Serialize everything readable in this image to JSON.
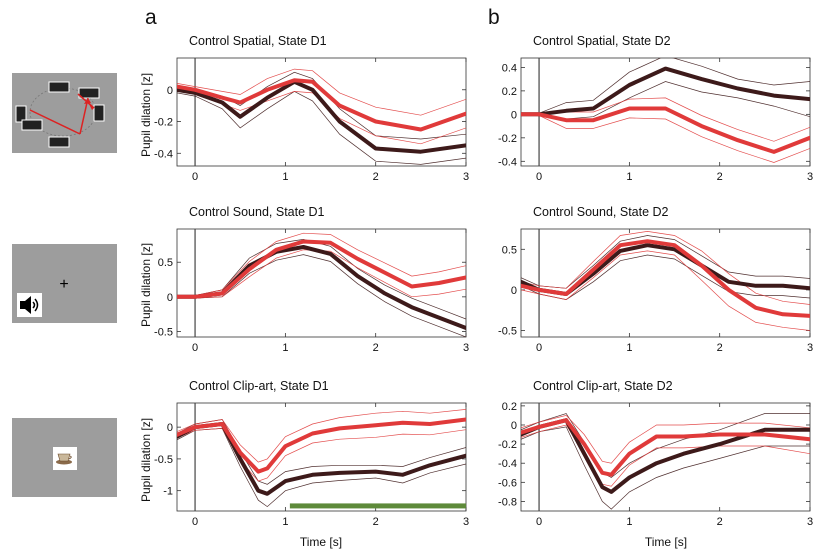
{
  "figure": {
    "letters": [
      "a",
      "b"
    ],
    "ylabel": "Pupil dilation [z]",
    "xlabel": "Time [s]"
  },
  "stimuli": [
    {
      "name": "spatial",
      "icons": [
        "checkerboard-icon"
      ]
    },
    {
      "name": "sound",
      "text": "+",
      "icons": [
        "speaker-icon"
      ]
    },
    {
      "name": "clip-art",
      "icons": [
        "coffee-cup-icon"
      ]
    }
  ],
  "colors": {
    "dark": "#3d1a1a",
    "red": "#e03a3a",
    "bar": "#5e8a3a",
    "axis": "#333333"
  },
  "chart_data": [
    {
      "type": "line",
      "title": "Control Spatial, State D1",
      "xlabel": "",
      "ylabel": "Pupil dilation [z]",
      "xlim": [
        -0.2,
        3
      ],
      "ylim": [
        -0.48,
        0.2
      ],
      "xticks": [
        0,
        1,
        2,
        3
      ],
      "yticks": [
        0,
        -0.2,
        -0.4
      ],
      "ytick_labels": [
        "0",
        "-0.2",
        "-0.4"
      ],
      "x": [
        -0.2,
        0,
        0.3,
        0.5,
        0.8,
        1.1,
        1.3,
        1.6,
        2.0,
        2.5,
        3.0
      ],
      "series": [
        {
          "name": "dark",
          "values": [
            0.0,
            -0.02,
            -0.08,
            -0.17,
            -0.05,
            0.05,
            0.0,
            -0.2,
            -0.37,
            -0.39,
            -0.35
          ]
        },
        {
          "name": "red",
          "values": [
            0.02,
            0.0,
            -0.05,
            -0.08,
            0.0,
            0.06,
            0.05,
            -0.1,
            -0.2,
            -0.25,
            -0.15
          ]
        }
      ],
      "bands": [
        {
          "series": "dark",
          "upper": [
            0.02,
            0.0,
            -0.04,
            -0.1,
            0.02,
            0.11,
            0.07,
            -0.12,
            -0.29,
            -0.31,
            -0.28
          ],
          "lower": [
            -0.02,
            -0.04,
            -0.12,
            -0.24,
            -0.12,
            -0.01,
            -0.07,
            -0.28,
            -0.45,
            -0.47,
            -0.43
          ]
        },
        {
          "series": "red",
          "upper": [
            0.04,
            0.02,
            -0.01,
            -0.03,
            0.07,
            0.13,
            0.12,
            -0.02,
            -0.11,
            -0.16,
            -0.06
          ],
          "lower": [
            0.0,
            -0.02,
            -0.09,
            -0.13,
            -0.07,
            -0.01,
            -0.02,
            -0.18,
            -0.29,
            -0.34,
            -0.24
          ]
        }
      ]
    },
    {
      "type": "line",
      "title": "Control Spatial, State D2",
      "xlabel": "",
      "ylabel": "",
      "xlim": [
        -0.2,
        3
      ],
      "ylim": [
        -0.44,
        0.48
      ],
      "xticks": [
        0,
        1,
        2,
        3
      ],
      "yticks": [
        0.4,
        0.2,
        0,
        -0.2,
        -0.4
      ],
      "ytick_labels": [
        "0.4",
        "0.2",
        "0",
        "-0.2",
        "-0.4"
      ],
      "x": [
        -0.2,
        0,
        0.3,
        0.6,
        1.0,
        1.4,
        1.8,
        2.2,
        2.6,
        3.0
      ],
      "series": [
        {
          "name": "dark",
          "values": [
            0.0,
            0.0,
            0.03,
            0.05,
            0.25,
            0.39,
            0.3,
            0.22,
            0.16,
            0.13
          ]
        },
        {
          "name": "red",
          "values": [
            0.0,
            0.0,
            -0.05,
            -0.05,
            0.05,
            0.05,
            -0.1,
            -0.22,
            -0.32,
            -0.2
          ]
        }
      ],
      "bands": [
        {
          "series": "dark",
          "upper": [
            0.01,
            0.01,
            0.1,
            0.12,
            0.36,
            0.5,
            0.41,
            0.3,
            0.25,
            0.28
          ],
          "lower": [
            -0.01,
            -0.01,
            -0.04,
            -0.02,
            0.14,
            0.28,
            0.19,
            0.14,
            0.07,
            -0.02
          ]
        },
        {
          "series": "red",
          "upper": [
            0.01,
            0.01,
            0.02,
            0.02,
            0.13,
            0.14,
            -0.01,
            -0.13,
            -0.23,
            -0.11
          ],
          "lower": [
            -0.01,
            -0.01,
            -0.12,
            -0.12,
            -0.03,
            -0.04,
            -0.19,
            -0.31,
            -0.41,
            -0.29
          ]
        }
      ]
    },
    {
      "type": "line",
      "title": "Control Sound, State D1",
      "xlabel": "",
      "ylabel": "Pupil dilation [z]",
      "xlim": [
        -0.2,
        3
      ],
      "ylim": [
        -0.58,
        0.98
      ],
      "xticks": [
        0,
        1,
        2,
        3
      ],
      "yticks": [
        0.5,
        0,
        -0.5
      ],
      "ytick_labels": [
        "0.5",
        "0",
        "-0.5"
      ],
      "x": [
        -0.2,
        0,
        0.3,
        0.6,
        0.9,
        1.2,
        1.5,
        1.8,
        2.1,
        2.4,
        2.7,
        3.0
      ],
      "series": [
        {
          "name": "dark",
          "values": [
            0.0,
            0.0,
            0.05,
            0.45,
            0.65,
            0.72,
            0.62,
            0.3,
            0.05,
            -0.15,
            -0.3,
            -0.45
          ]
        },
        {
          "name": "red",
          "values": [
            0.0,
            0.0,
            0.05,
            0.4,
            0.68,
            0.8,
            0.78,
            0.55,
            0.35,
            0.15,
            0.2,
            0.28
          ]
        }
      ],
      "bands": [
        {
          "series": "dark",
          "upper": [
            0.02,
            0.02,
            0.1,
            0.56,
            0.77,
            0.83,
            0.73,
            0.41,
            0.17,
            -0.02,
            -0.17,
            -0.32
          ],
          "lower": [
            -0.02,
            -0.02,
            0.0,
            0.34,
            0.53,
            0.61,
            0.51,
            0.19,
            -0.07,
            -0.28,
            -0.43,
            -0.58
          ]
        },
        {
          "series": "red",
          "upper": [
            0.02,
            0.02,
            0.1,
            0.51,
            0.8,
            0.92,
            0.9,
            0.68,
            0.49,
            0.3,
            0.36,
            0.45
          ],
          "lower": [
            -0.02,
            -0.02,
            0.0,
            0.29,
            0.56,
            0.68,
            0.66,
            0.42,
            0.21,
            0.0,
            0.04,
            0.11
          ]
        }
      ]
    },
    {
      "type": "line",
      "title": "Control Sound, State D2",
      "xlabel": "",
      "ylabel": "",
      "xlim": [
        -0.2,
        3
      ],
      "ylim": [
        -0.58,
        0.75
      ],
      "xticks": [
        0,
        1,
        2,
        3
      ],
      "yticks": [
        0.5,
        0,
        -0.5
      ],
      "ytick_labels": [
        "0.5",
        "0",
        "-0.5"
      ],
      "x": [
        -0.2,
        0,
        0.3,
        0.6,
        0.9,
        1.2,
        1.5,
        1.8,
        2.1,
        2.4,
        2.7,
        3.0
      ],
      "series": [
        {
          "name": "dark",
          "values": [
            0.1,
            0.0,
            -0.05,
            0.2,
            0.48,
            0.55,
            0.5,
            0.3,
            0.1,
            0.05,
            0.05,
            0.02
          ]
        },
        {
          "name": "red",
          "values": [
            0.05,
            0.0,
            -0.05,
            0.25,
            0.55,
            0.6,
            0.55,
            0.3,
            0.0,
            -0.22,
            -0.3,
            -0.32
          ]
        }
      ],
      "bands": [
        {
          "series": "dark",
          "upper": [
            0.15,
            0.05,
            0.02,
            0.3,
            0.6,
            0.67,
            0.62,
            0.42,
            0.22,
            0.17,
            0.17,
            0.14
          ],
          "lower": [
            0.05,
            -0.05,
            -0.12,
            0.1,
            0.36,
            0.43,
            0.38,
            0.18,
            -0.02,
            -0.07,
            -0.07,
            -0.1
          ]
        },
        {
          "series": "red",
          "upper": [
            0.1,
            0.05,
            0.02,
            0.35,
            0.67,
            0.72,
            0.67,
            0.48,
            0.2,
            -0.04,
            -0.14,
            -0.18
          ],
          "lower": [
            0.0,
            -0.05,
            -0.12,
            0.15,
            0.43,
            0.48,
            0.43,
            0.12,
            -0.2,
            -0.4,
            -0.46,
            -0.5
          ]
        }
      ]
    },
    {
      "type": "line",
      "title": "Control Clip-art, State D1",
      "xlabel": "Time [s]",
      "ylabel": "Pupil dilation [z]",
      "xlim": [
        -0.2,
        3
      ],
      "ylim": [
        -1.32,
        0.38
      ],
      "xticks": [
        0,
        1,
        2,
        3
      ],
      "yticks": [
        0,
        -0.5,
        -1
      ],
      "ytick_labels": [
        "0",
        "-0.5",
        "-1"
      ],
      "x": [
        -0.2,
        0,
        0.3,
        0.5,
        0.7,
        0.8,
        1.0,
        1.3,
        1.6,
        2.0,
        2.3,
        2.6,
        3.0
      ],
      "series": [
        {
          "name": "dark",
          "values": [
            -0.15,
            0.0,
            0.05,
            -0.5,
            -1.0,
            -1.05,
            -0.85,
            -0.75,
            -0.72,
            -0.7,
            -0.75,
            -0.6,
            -0.45
          ]
        },
        {
          "name": "red",
          "values": [
            -0.12,
            0.0,
            0.05,
            -0.4,
            -0.7,
            -0.65,
            -0.3,
            -0.1,
            -0.02,
            0.03,
            0.07,
            0.05,
            0.12
          ]
        }
      ],
      "bands": [
        {
          "series": "dark",
          "upper": [
            -0.1,
            0.05,
            0.12,
            -0.38,
            -0.85,
            -0.9,
            -0.7,
            -0.62,
            -0.6,
            -0.6,
            -0.62,
            -0.48,
            -0.32
          ],
          "lower": [
            -0.2,
            -0.05,
            -0.02,
            -0.62,
            -1.15,
            -1.25,
            -1.0,
            -0.88,
            -0.84,
            -0.8,
            -0.88,
            -0.72,
            -0.58
          ]
        },
        {
          "series": "red",
          "upper": [
            -0.07,
            0.05,
            0.12,
            -0.28,
            -0.55,
            -0.5,
            -0.15,
            0.05,
            0.15,
            0.22,
            0.25,
            0.22,
            0.28
          ],
          "lower": [
            -0.17,
            -0.05,
            -0.02,
            -0.52,
            -0.85,
            -0.8,
            -0.45,
            -0.25,
            -0.19,
            -0.16,
            -0.11,
            -0.12,
            -0.04
          ]
        }
      ],
      "significance_bar": {
        "x_start": 1.05,
        "x_end": 3.0,
        "y": -1.24
      }
    },
    {
      "type": "line",
      "title": "Control Clip-art, State D2",
      "xlabel": "Time [s]",
      "ylabel": "",
      "xlim": [
        -0.2,
        3
      ],
      "ylim": [
        -0.9,
        0.23
      ],
      "xticks": [
        0,
        1,
        2,
        3
      ],
      "yticks": [
        0.2,
        0,
        -0.2,
        -0.4,
        -0.6,
        -0.8
      ],
      "ytick_labels": [
        "0.2",
        "0",
        "-0.2",
        "-0.4",
        "-0.6",
        "-0.8"
      ],
      "x": [
        -0.2,
        0,
        0.3,
        0.5,
        0.7,
        0.8,
        1.0,
        1.3,
        1.6,
        2.0,
        2.5,
        3.0
      ],
      "series": [
        {
          "name": "dark",
          "values": [
            -0.1,
            -0.02,
            0.05,
            -0.3,
            -0.65,
            -0.7,
            -0.55,
            -0.4,
            -0.3,
            -0.2,
            -0.05,
            -0.05
          ]
        },
        {
          "name": "red",
          "values": [
            -0.08,
            -0.02,
            0.05,
            -0.2,
            -0.5,
            -0.52,
            -0.3,
            -0.12,
            -0.12,
            -0.1,
            -0.1,
            -0.15
          ]
        }
      ],
      "bands": [
        {
          "series": "dark",
          "upper": [
            -0.05,
            0.03,
            0.12,
            -0.18,
            -0.5,
            -0.55,
            -0.4,
            -0.25,
            -0.15,
            -0.05,
            0.12,
            0.12
          ],
          "lower": [
            -0.15,
            -0.07,
            -0.02,
            -0.42,
            -0.8,
            -0.88,
            -0.7,
            -0.55,
            -0.45,
            -0.35,
            -0.22,
            -0.22
          ]
        },
        {
          "series": "red",
          "upper": [
            -0.03,
            0.03,
            0.1,
            -0.1,
            -0.38,
            -0.4,
            -0.18,
            0.0,
            0.0,
            0.02,
            0.02,
            -0.03
          ],
          "lower": [
            -0.13,
            -0.07,
            0.0,
            -0.3,
            -0.62,
            -0.64,
            -0.42,
            -0.24,
            -0.24,
            -0.22,
            -0.22,
            -0.3
          ]
        }
      ]
    }
  ]
}
